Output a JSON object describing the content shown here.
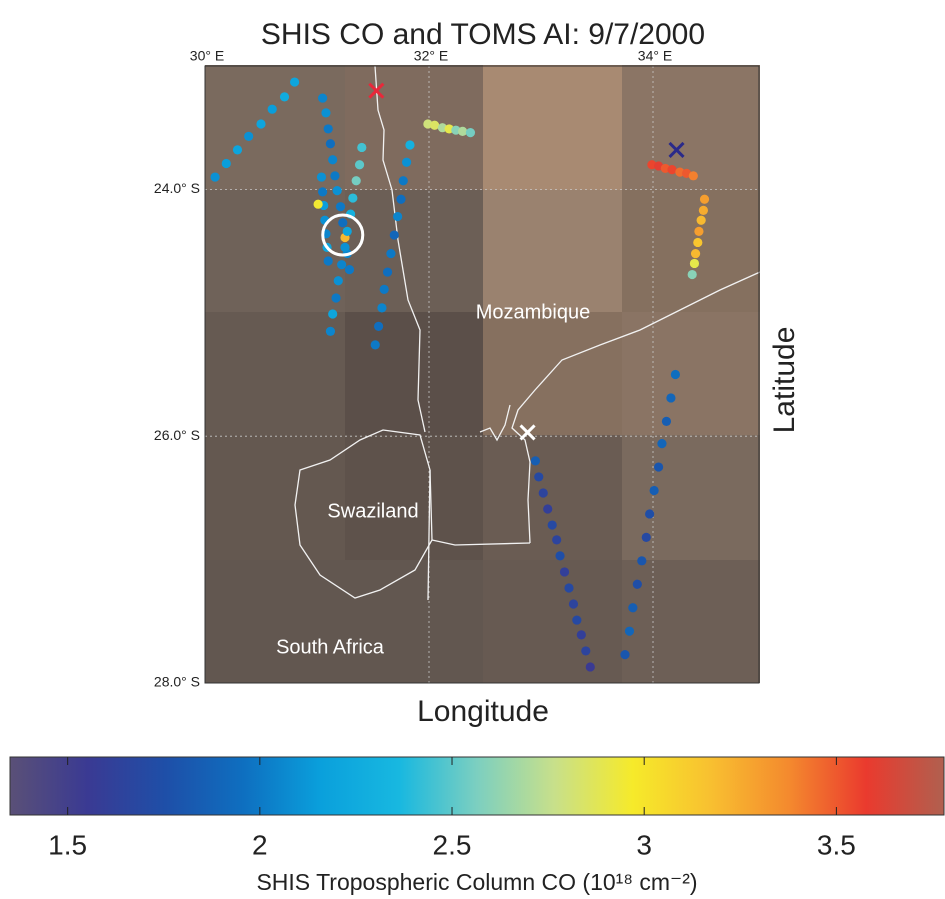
{
  "chart_data": {
    "type": "scatter",
    "title": "SHIS CO and TOMS AI: 9/7/2000",
    "x_label": "Longitude",
    "y_label": "Latitude",
    "xlim": [
      30,
      34.95
    ],
    "ylim": [
      -28,
      -23
    ],
    "xticks": [
      {
        "value": 30,
        "label": "30° E"
      },
      {
        "value": 32,
        "label": "32° E"
      },
      {
        "value": 34,
        "label": "34° E"
      }
    ],
    "yticks": [
      {
        "value": -24,
        "label": "24.0° S"
      },
      {
        "value": -26,
        "label": "26.0° S"
      },
      {
        "value": -28,
        "label": "28.0° S"
      }
    ],
    "grid": true,
    "annotations": [
      "Mozambique",
      "Swaziland",
      "South Africa"
    ],
    "colorbar": {
      "label": "SHIS Tropospheric Column CO (10¹⁸ cm⁻²)",
      "clim": [
        1.35,
        3.78
      ],
      "ticks": [
        1.5,
        2,
        2.5,
        3,
        3.5
      ],
      "colormap": [
        "#5a5077",
        "#3a3a93",
        "#1e4fa8",
        "#0e6fc0",
        "#0aa0dc",
        "#18b8e0",
        "#7ccfc0",
        "#c8e08a",
        "#f6ea2a",
        "#f8c030",
        "#f48a2e",
        "#ea3a2e",
        "#b0604f"
      ]
    },
    "series": [
      {
        "x": [
          30.8,
          30.71,
          30.6,
          30.5,
          30.39,
          30.29,
          30.19,
          30.09
        ],
        "y": [
          -23.13,
          -23.25,
          -23.35,
          -23.47,
          -23.57,
          -23.68,
          -23.79,
          -23.9
        ],
        "values": [
          2.2,
          2.25,
          2.15,
          2.2,
          2.1,
          2.2,
          2.15,
          2.1
        ]
      },
      {
        "x": [
          31.05,
          31.08,
          31.1,
          31.12,
          31.14,
          31.16,
          31.18,
          31.21,
          31.23,
          31.25,
          31.27,
          31.29
        ],
        "y": [
          -23.26,
          -23.38,
          -23.51,
          -23.63,
          -23.76,
          -23.89,
          -24.01,
          -24.14,
          -24.27,
          -24.39,
          -24.52,
          -24.65
        ],
        "values": [
          2.05,
          2.1,
          2.0,
          1.95,
          2.05,
          2.0,
          2.1,
          2.0,
          1.95,
          3.2,
          2.05,
          2.0
        ]
      },
      {
        "x": [
          31.04,
          31.05,
          31.06,
          31.07,
          31.08,
          31.09,
          31.1,
          31.01
        ],
        "y": [
          -23.9,
          -24.02,
          -24.13,
          -24.25,
          -24.36,
          -24.47,
          -24.58,
          -24.12
        ],
        "values": [
          2.1,
          2.0,
          2.15,
          2.1,
          2.05,
          2.2,
          2.0,
          2.95
        ]
      },
      {
        "x": [
          31.4,
          31.38,
          31.35,
          31.32,
          31.3,
          31.27,
          31.25,
          31.22,
          31.19,
          31.17,
          31.14,
          31.12
        ],
        "y": [
          -23.66,
          -23.8,
          -23.93,
          -24.07,
          -24.2,
          -24.34,
          -24.47,
          -24.61,
          -24.74,
          -24.88,
          -25.01,
          -25.15
        ],
        "values": [
          2.45,
          2.5,
          2.55,
          2.4,
          2.3,
          2.2,
          2.1,
          2.05,
          2.1,
          2.0,
          2.2,
          2.05
        ]
      },
      {
        "x": [
          31.83,
          31.8,
          31.77,
          31.75,
          31.72,
          31.69,
          31.66,
          31.63,
          31.6,
          31.58,
          31.55,
          31.52
        ],
        "y": [
          -23.64,
          -23.78,
          -23.93,
          -24.08,
          -24.22,
          -24.37,
          -24.52,
          -24.67,
          -24.81,
          -24.96,
          -25.11,
          -25.26
        ],
        "values": [
          2.3,
          2.1,
          2.0,
          1.95,
          2.05,
          1.9,
          2.0,
          1.95,
          2.0,
          2.05,
          1.95,
          2.0
        ]
      },
      {
        "x": [
          31.99,
          32.05,
          32.12,
          32.18,
          32.24,
          32.3,
          32.37
        ],
        "y": [
          -23.47,
          -23.48,
          -23.5,
          -23.51,
          -23.52,
          -23.53,
          -23.54
        ],
        "values": [
          2.8,
          2.85,
          2.7,
          2.9,
          2.6,
          2.7,
          2.55
        ]
      },
      {
        "x": [
          33.99,
          34.05,
          34.11,
          34.17,
          34.24,
          34.3,
          34.36
        ],
        "y": [
          -23.8,
          -23.81,
          -23.83,
          -23.84,
          -23.86,
          -23.87,
          -23.89
        ],
        "values": [
          3.55,
          3.6,
          3.5,
          3.55,
          3.45,
          3.5,
          3.4
        ]
      },
      {
        "x": [
          34.46,
          34.45,
          34.43,
          34.41,
          34.4,
          34.38,
          34.37,
          34.35
        ],
        "y": [
          -24.08,
          -24.17,
          -24.25,
          -24.34,
          -24.43,
          -24.52,
          -24.6,
          -24.69
        ],
        "values": [
          3.3,
          3.25,
          3.2,
          3.3,
          3.15,
          3.2,
          2.9,
          2.6
        ]
      },
      {
        "x": [
          32.95,
          32.98,
          33.02,
          33.06,
          33.1,
          33.14,
          33.17,
          33.21,
          33.25,
          33.29,
          33.32,
          33.36,
          33.4,
          33.44
        ],
        "y": [
          -26.2,
          -26.33,
          -26.46,
          -26.59,
          -26.72,
          -26.84,
          -26.97,
          -27.1,
          -27.23,
          -27.36,
          -27.49,
          -27.61,
          -27.74,
          -27.87
        ],
        "values": [
          1.85,
          1.7,
          1.65,
          1.6,
          1.7,
          1.65,
          1.75,
          1.6,
          1.7,
          1.65,
          1.7,
          1.6,
          1.65,
          1.55
        ]
      },
      {
        "x": [
          34.2,
          34.16,
          34.12,
          34.08,
          34.05,
          34.01,
          33.97,
          33.94,
          33.9,
          33.86,
          33.82,
          33.79,
          33.75
        ],
        "y": [
          -25.5,
          -25.69,
          -25.88,
          -26.06,
          -26.25,
          -26.44,
          -26.63,
          -26.82,
          -27.01,
          -27.2,
          -27.39,
          -27.58,
          -27.77
        ],
        "values": [
          1.95,
          1.9,
          1.85,
          1.9,
          1.8,
          1.85,
          1.75,
          1.7,
          1.8,
          1.75,
          1.85,
          1.9,
          1.8
        ]
      }
    ],
    "markers": [
      {
        "shape": "x",
        "x": 31.53,
        "y": -23.2,
        "color": "#e8283a"
      },
      {
        "shape": "x",
        "x": 34.21,
        "y": -23.68,
        "color": "#2a2a8a"
      },
      {
        "shape": "x",
        "x": 32.88,
        "y": -25.97,
        "color": "#ffffff"
      },
      {
        "shape": "circle",
        "x": 31.23,
        "y": -24.37,
        "color": "#ffffff"
      }
    ]
  }
}
